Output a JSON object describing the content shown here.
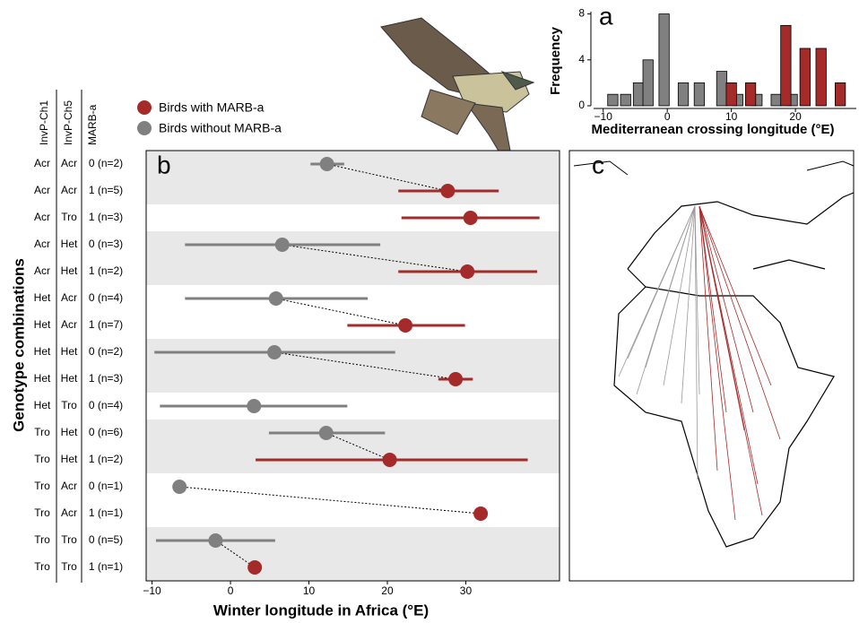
{
  "chart_data": [
    {
      "type": "bar",
      "label": "a",
      "ylabel": "Frequency",
      "xlabel": "Mediterranean crossing longitude (°E)",
      "bar_width": 1.6,
      "series": [
        {
          "name": "Birds without MARB-a",
          "color": "#808080",
          "x": [
            -8.5,
            -6.5,
            -4.5,
            -3,
            -0.5,
            2.5,
            5,
            8.5,
            11,
            14,
            17,
            19.5
          ],
          "values": [
            1,
            1,
            2,
            4,
            8,
            2,
            2,
            3,
            1,
            1,
            1,
            1
          ]
        },
        {
          "name": "Birds with MARB-a",
          "color": "#a52a2a",
          "x": [
            10,
            13,
            18.5,
            21.5,
            24,
            27
          ],
          "values": [
            2,
            2,
            7,
            5,
            5,
            2
          ]
        }
      ],
      "xlim": [
        -11.5,
        29.5
      ],
      "xticks": [
        {
          "value": -10,
          "label": "−10"
        },
        0,
        10,
        20
      ],
      "ylim": [
        0,
        8.2
      ],
      "yticks": [
        0,
        4,
        8
      ]
    },
    {
      "type": "interval",
      "label": "b",
      "ylabel": "Genotype combinations",
      "xlabel": "Winter longitude in Africa (°E)",
      "row_headers": [
        "InvP-Ch1",
        "InvP-Ch5",
        "MARB-a"
      ],
      "categories": [
        [
          "Acr",
          "Acr",
          "0 (n=2)"
        ],
        [
          "Acr",
          "Acr",
          "1 (n=5)"
        ],
        [
          "Acr",
          "Tro",
          "1 (n=3)"
        ],
        [
          "Acr",
          "Het",
          "0 (n=3)"
        ],
        [
          "Acr",
          "Het",
          "1 (n=2)"
        ],
        [
          "Het",
          "Acr",
          "0 (n=4)"
        ],
        [
          "Het",
          "Acr",
          "1 (n=7)"
        ],
        [
          "Het",
          "Het",
          "0 (n=2)"
        ],
        [
          "Het",
          "Het",
          "1 (n=3)"
        ],
        [
          "Het",
          "Tro",
          "0 (n=4)"
        ],
        [
          "Tro",
          "Het",
          "0 (n=6)"
        ],
        [
          "Tro",
          "Het",
          "1 (n=2)"
        ],
        [
          "Tro",
          "Acr",
          "0 (n=1)"
        ],
        [
          "Tro",
          "Acr",
          "1 (n=1)"
        ],
        [
          "Tro",
          "Tro",
          "0 (n=5)"
        ],
        [
          "Tro",
          "Tro",
          "1 (n=1)"
        ]
      ],
      "series": [
        {
          "name": "Birds with MARB-a",
          "color": "#a52a2a",
          "values": [
            null,
            27.7,
            30.6,
            null,
            30.2,
            null,
            22.3,
            null,
            28.7,
            null,
            null,
            20.3,
            null,
            31.9,
            null,
            3.1
          ],
          "lower": [
            null,
            21.4,
            21.8,
            null,
            21.4,
            null,
            14.9,
            null,
            26.5,
            null,
            null,
            3.2,
            null,
            null,
            null,
            null
          ],
          "upper": [
            null,
            34.2,
            39.4,
            null,
            39.1,
            null,
            29.9,
            null,
            30.9,
            null,
            null,
            37.9,
            null,
            null,
            null,
            null
          ]
        },
        {
          "name": "Birds without MARB-a",
          "color": "#808080",
          "values": [
            12.3,
            null,
            null,
            6.6,
            null,
            5.8,
            null,
            5.6,
            null,
            3,
            12.2,
            null,
            -6.5,
            null,
            -1.9,
            null
          ],
          "lower": [
            10.2,
            null,
            null,
            -5.8,
            null,
            -5.8,
            null,
            -9.7,
            null,
            -9,
            4.9,
            null,
            null,
            null,
            -9.5,
            null
          ],
          "upper": [
            14.5,
            null,
            null,
            19.1,
            null,
            17.5,
            null,
            21,
            null,
            14.9,
            19.7,
            null,
            null,
            null,
            5.7,
            null
          ]
        }
      ],
      "xlim": [
        -10.75,
        41.95
      ],
      "xticks": [
        {
          "value": -10,
          "label": "−10"
        },
        0,
        10,
        20,
        30
      ]
    },
    {
      "type": "map",
      "label": "c"
    }
  ]
}
